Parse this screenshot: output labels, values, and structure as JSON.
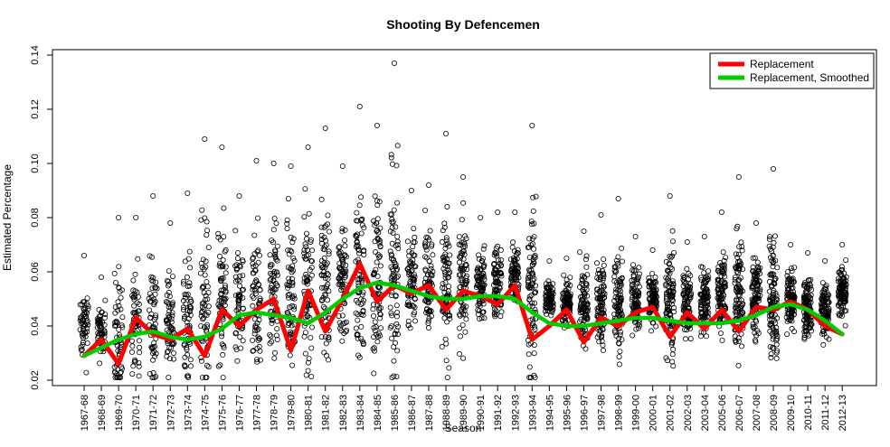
{
  "chart_data": {
    "type": "scatter",
    "title": "Shooting By Defencemen",
    "xlabel": "Season",
    "ylabel": "Estimated Percentage",
    "ylim": [
      0.018,
      0.142
    ],
    "yticks": [
      0.02,
      0.04,
      0.06,
      0.08,
      0.1,
      0.12,
      0.14
    ],
    "ytick_labels": [
      "0.02",
      "0.04",
      "0.06",
      "0.08",
      "0.10",
      "0.12",
      "0.14"
    ],
    "categories": [
      "1967-68",
      "1968-69",
      "1969-70",
      "1970-71",
      "1971-72",
      "1972-73",
      "1973-74",
      "1974-75",
      "1975-76",
      "1976-77",
      "1977-78",
      "1978-79",
      "1979-80",
      "1980-81",
      "1981-82",
      "1982-83",
      "1983-84",
      "1984-85",
      "1985-86",
      "1986-87",
      "1987-88",
      "1988-89",
      "1989-90",
      "1990-91",
      "1991-92",
      "1992-93",
      "1993-94",
      "1994-95",
      "1995-96",
      "1996-97",
      "1997-98",
      "1998-99",
      "1999-00",
      "2000-01",
      "2001-02",
      "2002-03",
      "2003-04",
      "2005-06",
      "2006-07",
      "2007-08",
      "2008-09",
      "2009-10",
      "2010-11",
      "2011-12",
      "2012-13"
    ],
    "legend_position": "top-right",
    "series": [
      {
        "name": "Replacement",
        "color": "#ff0000",
        "style": "line",
        "values": [
          0.029,
          0.035,
          0.026,
          0.043,
          0.037,
          0.035,
          0.039,
          0.029,
          0.046,
          0.04,
          0.046,
          0.05,
          0.031,
          0.053,
          0.038,
          0.05,
          0.063,
          0.049,
          0.055,
          0.052,
          0.055,
          0.046,
          0.053,
          0.051,
          0.048,
          0.055,
          0.035,
          0.04,
          0.046,
          0.034,
          0.043,
          0.04,
          0.045,
          0.047,
          0.036,
          0.045,
          0.039,
          0.046,
          0.038,
          0.047,
          0.046,
          0.049,
          0.046,
          0.04,
          0.037
        ]
      },
      {
        "name": "Replacement, Smoothed",
        "color": "#00cc00",
        "style": "line",
        "values": [
          0.029,
          0.032,
          0.035,
          0.037,
          0.038,
          0.036,
          0.035,
          0.036,
          0.039,
          0.044,
          0.045,
          0.044,
          0.043,
          0.041,
          0.045,
          0.05,
          0.054,
          0.056,
          0.055,
          0.053,
          0.051,
          0.05,
          0.05,
          0.051,
          0.051,
          0.05,
          0.045,
          0.041,
          0.04,
          0.04,
          0.041,
          0.042,
          0.043,
          0.043,
          0.042,
          0.041,
          0.041,
          0.041,
          0.042,
          0.044,
          0.047,
          0.048,
          0.046,
          0.042,
          0.037
        ]
      }
    ],
    "scatter_points": {
      "marker": "open-circle",
      "color": "#000000",
      "season_center": [
        0.04,
        0.038,
        0.036,
        0.04,
        0.042,
        0.041,
        0.043,
        0.045,
        0.047,
        0.048,
        0.05,
        0.052,
        0.053,
        0.054,
        0.055,
        0.056,
        0.058,
        0.057,
        0.059,
        0.058,
        0.057,
        0.055,
        0.054,
        0.055,
        0.056,
        0.058,
        0.052,
        0.05,
        0.049,
        0.048,
        0.048,
        0.049,
        0.05,
        0.05,
        0.048,
        0.048,
        0.049,
        0.053,
        0.051,
        0.051,
        0.05,
        0.05,
        0.047,
        0.046,
        0.052
      ],
      "season_max": [
        0.066,
        0.058,
        0.08,
        0.08,
        0.088,
        0.078,
        0.089,
        0.109,
        0.106,
        0.088,
        0.101,
        0.1,
        0.099,
        0.106,
        0.113,
        0.099,
        0.121,
        0.114,
        0.137,
        0.09,
        0.092,
        0.111,
        0.095,
        0.08,
        0.082,
        0.082,
        0.114,
        0.064,
        0.065,
        0.075,
        0.081,
        0.087,
        0.073,
        0.068,
        0.088,
        0.071,
        0.073,
        0.082,
        0.095,
        0.078,
        0.098,
        0.07,
        0.067,
        0.064,
        0.07
      ]
    }
  }
}
